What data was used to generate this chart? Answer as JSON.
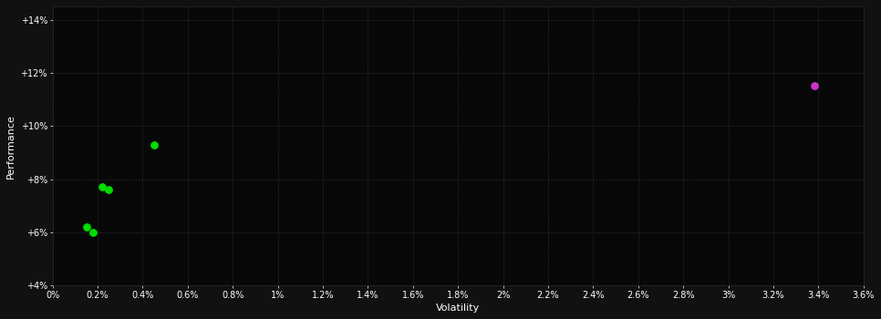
{
  "background_color": "#111111",
  "plot_bg_color": "#080808",
  "green_points": [
    [
      0.0015,
      0.062
    ],
    [
      0.0018,
      0.06
    ],
    [
      0.0022,
      0.077
    ],
    [
      0.0025,
      0.076
    ],
    [
      0.0045,
      0.093
    ]
  ],
  "magenta_points": [
    [
      0.0338,
      0.115
    ]
  ],
  "green_color": "#00dd00",
  "magenta_color": "#cc33cc",
  "xlabel": "Volatility",
  "ylabel": "Performance",
  "xlim": [
    0.0,
    0.036
  ],
  "ylim": [
    0.04,
    0.145
  ],
  "marker_size": 28
}
